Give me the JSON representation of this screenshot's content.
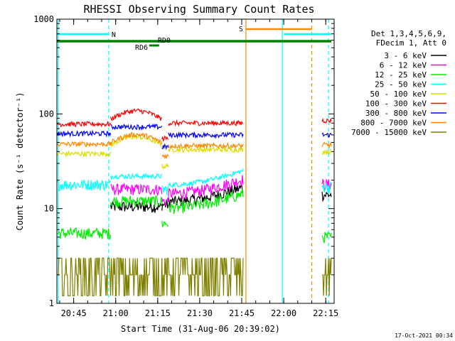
{
  "chart_data": {
    "type": "line",
    "title": "RHESSI Observing Summary Count Rates",
    "xlabel": "Start Time (31-Aug-06 20:39:02)",
    "ylabel": "Count Rate (s⁻¹ detector⁻¹)",
    "x_unit": "minutes of day (UT)",
    "xlim": [
      1239,
      1338
    ],
    "ylim": [
      1,
      1000
    ],
    "yscale": "log",
    "grid": false,
    "legend_position": "top-right",
    "x_ticks": [
      {
        "value": 1245,
        "label": "20:45"
      },
      {
        "value": 1260,
        "label": "21:00"
      },
      {
        "value": 1275,
        "label": "21:15"
      },
      {
        "value": 1290,
        "label": "21:30"
      },
      {
        "value": 1305,
        "label": "21:45"
      },
      {
        "value": 1320,
        "label": "22:00"
      },
      {
        "value": 1335,
        "label": "22:15"
      }
    ],
    "y_ticks": [
      {
        "value": 1,
        "label": "1"
      },
      {
        "value": 10,
        "label": "10"
      },
      {
        "value": 100,
        "label": "100"
      },
      {
        "value": 1000,
        "label": "1000"
      }
    ],
    "legend_header": [
      "Det 1,3,4,5,6,9,",
      "FDecim 1, Att 0"
    ],
    "segments": [
      [
        1239,
        1258.2
      ],
      [
        1258.2,
        1276.5
      ],
      [
        1276.5,
        1278.8
      ],
      [
        1278.8,
        1305.5
      ],
      [
        1333.7,
        1337
      ]
    ],
    "series": [
      {
        "name": "3 - 6 keV",
        "color": "#000000",
        "values": [
          null,
          10.5,
          11,
          14,
          14
        ]
      },
      {
        "name": "6 - 12 keV",
        "color": "#ff00ff",
        "values": [
          null,
          16,
          12,
          17,
          18
        ]
      },
      {
        "name": "12 - 25 keV",
        "color": "#00ee00",
        "values": [
          5.5,
          12,
          7,
          12,
          5
        ]
      },
      {
        "name": "25 - 50 keV",
        "color": "#00ffff",
        "values": [
          18,
          22,
          16,
          21,
          17
        ]
      },
      {
        "name": "50 - 100 keV",
        "color": "#dddd00",
        "values": [
          38,
          52,
          28,
          42,
          40
        ]
      },
      {
        "name": "100 - 300 keV",
        "color": "#ff0000",
        "values": [
          78,
          98,
          55,
          80,
          85
        ]
      },
      {
        "name": "300 - 800 keV",
        "color": "#0000ff",
        "values": [
          62,
          73,
          45,
          60,
          60
        ]
      },
      {
        "name": "800 - 7000 keV",
        "color": "#ff8800",
        "values": [
          48,
          55,
          36,
          46,
          47
        ]
      },
      {
        "name": "7000 - 15000 keV",
        "color": "#808000",
        "values": [
          2,
          3,
          2.5,
          2.5,
          2.5
        ]
      }
    ],
    "annotations": [
      {
        "label": "N",
        "kind": "night",
        "color": "#00ffff",
        "x": 1257.5
      },
      {
        "label": "S",
        "kind": "saa",
        "color": "#ff8800",
        "x": 1306.5
      },
      {
        "label": "RD6",
        "color": "#008000",
        "x_range": [
          1272,
          1275.5
        ]
      },
      {
        "label": "RD0",
        "color": "#008000",
        "x_range": [
          1274.5,
          1278
        ]
      }
    ],
    "flag_bars": [
      {
        "name": "night",
        "color": "#00ffff",
        "ranges": [
          [
            1239,
            1257.5
          ],
          [
            1320,
            1337
          ]
        ]
      },
      {
        "name": "saa",
        "color": "#ff8800",
        "ranges": [
          [
            1306.5,
            1330
          ]
        ]
      },
      {
        "name": "attenuator",
        "color": "#008000",
        "ranges": [
          [
            1239,
            1337
          ]
        ]
      },
      {
        "name": "decimation",
        "color": "#008000",
        "ranges": [
          [
            1272,
            1275.5
          ]
        ]
      }
    ],
    "vlines": [
      {
        "x": 1239.5,
        "color": "#00ffff",
        "style": "solid"
      },
      {
        "x": 1257.5,
        "color": "#00ffff",
        "style": "dashed"
      },
      {
        "x": 1306.5,
        "color": "#ff8800",
        "style": "solid"
      },
      {
        "x": 1330.0,
        "color": "#ff8800",
        "style": "dashed"
      },
      {
        "x": 1319.5,
        "color": "#00ffff",
        "style": "solid"
      },
      {
        "x": 1336.0,
        "color": "#00ffff",
        "style": "dashed"
      }
    ]
  },
  "footer": {
    "timestamp": "17-Oct-2021 00:34"
  }
}
